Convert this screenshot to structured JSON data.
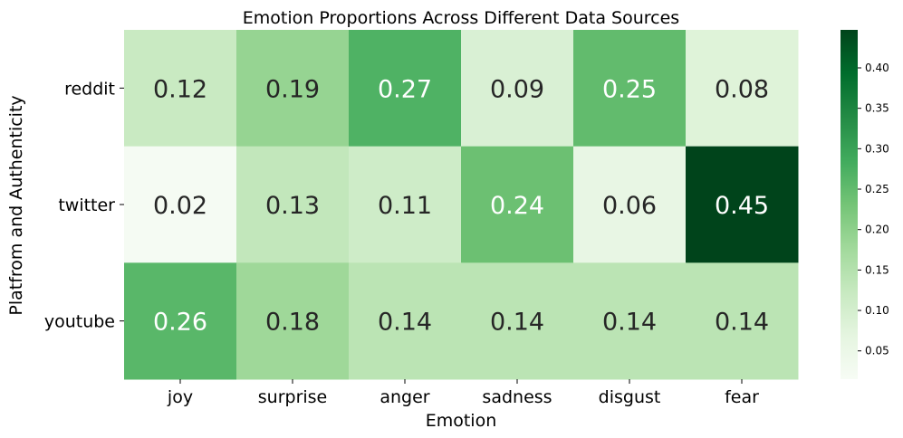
{
  "chart_data": {
    "type": "heatmap",
    "title": "Emotion Proportions Across Different Data Sources",
    "xlabel": "Emotion",
    "ylabel": "Platfrom and Authenticity",
    "x_categories": [
      "joy",
      "surprise",
      "anger",
      "sadness",
      "disgust",
      "fear"
    ],
    "y_categories": [
      "reddit",
      "twitter",
      "youtube"
    ],
    "values": [
      [
        0.12,
        0.19,
        0.27,
        0.09,
        0.25,
        0.08
      ],
      [
        0.02,
        0.13,
        0.11,
        0.24,
        0.06,
        0.45
      ],
      [
        0.26,
        0.18,
        0.14,
        0.14,
        0.14,
        0.14
      ]
    ],
    "value_labels": [
      [
        "0.12",
        "0.19",
        "0.27",
        "0.09",
        "0.25",
        "0.08"
      ],
      [
        "0.02",
        "0.13",
        "0.11",
        "0.24",
        "0.06",
        "0.45"
      ],
      [
        "0.26",
        "0.18",
        "0.14",
        "0.14",
        "0.14",
        "0.14"
      ]
    ],
    "colormap": "Greens",
    "color_range": [
      0.015,
      0.447
    ],
    "colorbar_ticks": [
      0.05,
      0.1,
      0.15,
      0.2,
      0.25,
      0.3,
      0.35,
      0.4
    ],
    "colorbar_tick_labels": [
      "0.05",
      "0.10",
      "0.15",
      "0.20",
      "0.25",
      "0.30",
      "0.35",
      "0.40"
    ],
    "colors": {
      "light_text": "#ffffff",
      "dark_text": "#262626",
      "axis": "#000000"
    }
  }
}
